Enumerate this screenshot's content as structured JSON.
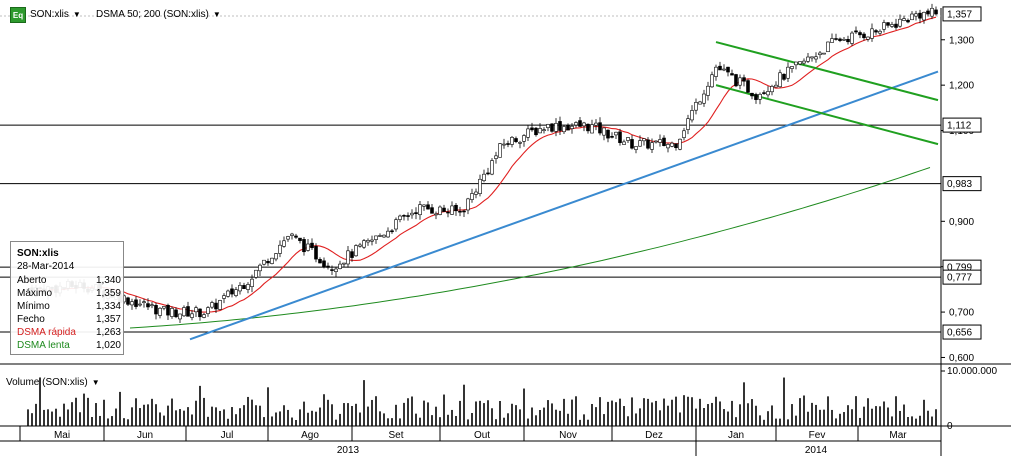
{
  "header": {
    "icon_label": "Eq",
    "symbol": "SON:xlis",
    "indicator": "DSMA 50; 200 (SON:xlis)"
  },
  "volume_panel": {
    "title": "Volume (SON:xlis)",
    "axis_labels": [
      "10.000.000",
      "0"
    ]
  },
  "info_box": {
    "symbol": "SON:xlis",
    "date": "28-Mar-2014",
    "rows": [
      {
        "label": "Aberto",
        "value": "1,340"
      },
      {
        "label": "Máximo",
        "value": "1,359"
      },
      {
        "label": "Mínimo",
        "value": "1,334"
      },
      {
        "label": "Fecho",
        "value": "1,357"
      },
      {
        "label": "DSMA rápida",
        "value": "1,263",
        "color": "#d42020"
      },
      {
        "label": "DSMA lenta",
        "value": "1,020",
        "color": "#1e8a1e"
      }
    ]
  },
  "colors": {
    "candle": "#000000",
    "fast_ma": "#e02020",
    "slow_ma": "#1e8a1e",
    "trend_blue": "#3a8ad0",
    "channel_green": "#20a020",
    "volume": "#000000"
  },
  "chart_data": {
    "type": "line",
    "series": [
      {
        "name": "SON:xlis",
        "values_by_month": {
          "Mai": [
            0.75,
            0.76
          ],
          "Jun": [
            0.73,
            0.7
          ],
          "Jul": [
            0.7,
            0.77
          ],
          "Ago": [
            0.87,
            0.8
          ],
          "Set": [
            0.86,
            0.93
          ],
          "Out": [
            0.92,
            1.07
          ],
          "Nov": [
            1.11,
            1.11
          ],
          "Dez": [
            1.07,
            1.07
          ],
          "Jan": [
            1.24,
            1.18
          ],
          "Fev": [
            1.24,
            1.3
          ],
          "Mar": [
            1.32,
            1.357
          ]
        }
      },
      {
        "name": "DSMA rápida",
        "last": 1.263
      },
      {
        "name": "DSMA lenta",
        "last": 1.02
      }
    ],
    "x_ticks": [
      "Mai",
      "Jun",
      "Jul",
      "Ago",
      "Set",
      "Out",
      "Nov",
      "Dez",
      "Jan",
      "Fev",
      "Mar"
    ],
    "years": [
      "2013",
      "2014"
    ],
    "y_ticks": [
      "1,300",
      "1,200",
      "1,100",
      "0,900",
      "0,800",
      "0,700",
      "0,600"
    ],
    "ylim": [
      0.59,
      1.37
    ],
    "horizontal_levels": [
      1.112,
      0.983,
      0.799,
      0.777,
      0.656
    ],
    "price_tags": [
      "1,357",
      "1,112",
      "0,983",
      "0,799",
      "0,777",
      "0,656"
    ],
    "volume_ylim": [
      0,
      10000000
    ],
    "legend": "top-left",
    "grid": false
  }
}
